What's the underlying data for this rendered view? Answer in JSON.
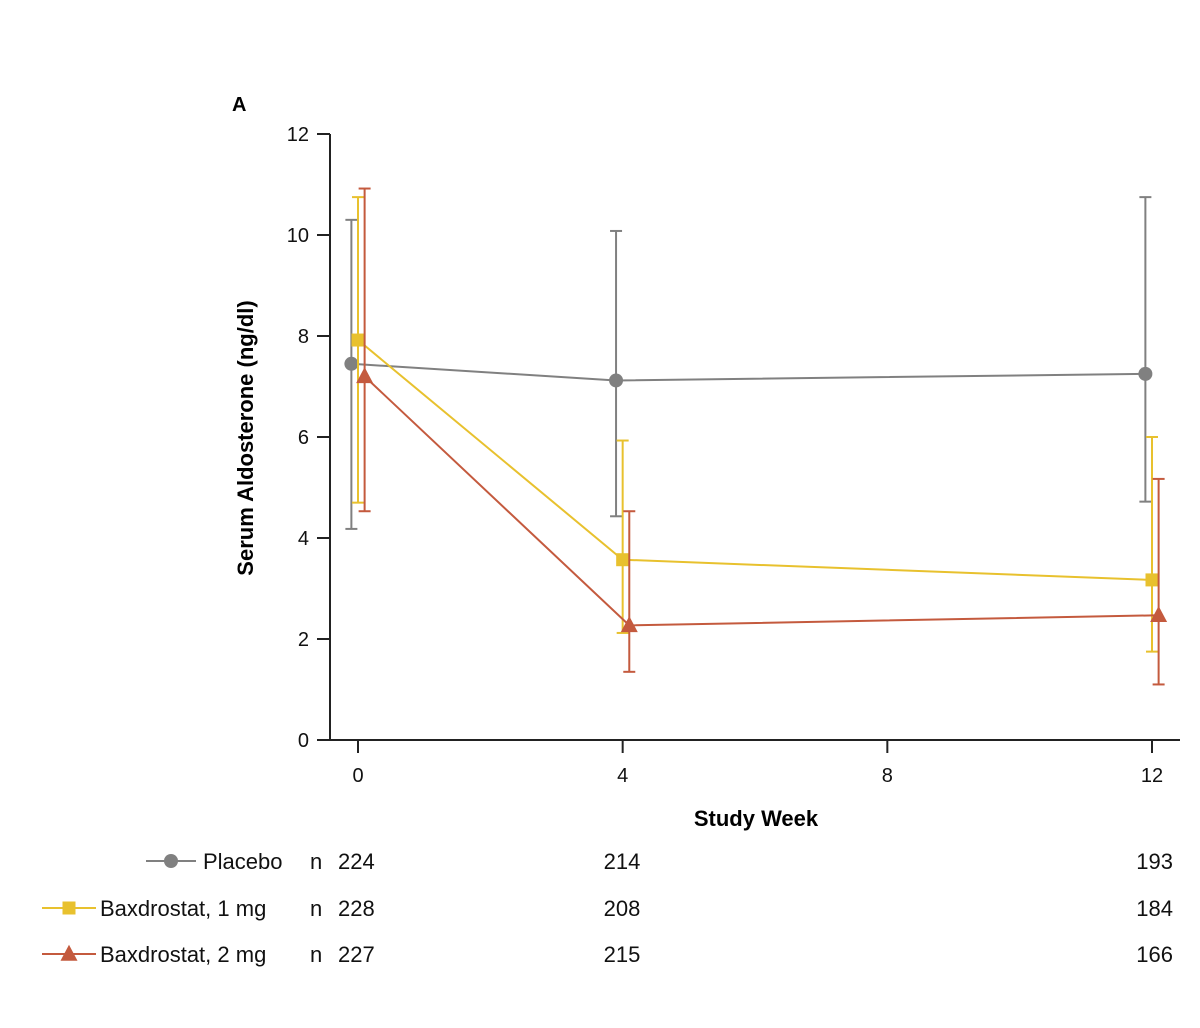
{
  "chart_data": {
    "type": "line",
    "panel_label": "A",
    "title": "",
    "xlabel": "Study Week",
    "ylabel": "Serum Aldosterone (ng/dl)",
    "xlim": [
      -0.4,
      12.4
    ],
    "ylim": [
      0,
      12
    ],
    "x_ticks": [
      "0",
      "4",
      "8",
      "12"
    ],
    "x_tick_values": [
      0,
      4,
      8,
      12
    ],
    "y_ticks": [
      "0",
      "2",
      "4",
      "6",
      "8",
      "10",
      "12"
    ],
    "y_tick_values": [
      0,
      2,
      4,
      6,
      8,
      10,
      12
    ],
    "grid": false,
    "series": [
      {
        "name": "Placebo",
        "color": "#808080",
        "marker": "circle",
        "x": [
          -0.1,
          3.9,
          11.9
        ],
        "values": [
          7.45,
          7.12,
          7.25
        ],
        "err_low": [
          4.18,
          4.43,
          4.72
        ],
        "err_high": [
          10.3,
          10.08,
          10.75
        ],
        "n_counts": [
          "224",
          "214",
          "193"
        ]
      },
      {
        "name": "Baxdrostat, 1 mg",
        "color": "#e8c12e",
        "marker": "square",
        "x": [
          0.0,
          4.0,
          12.0
        ],
        "values": [
          7.92,
          3.57,
          3.17
        ],
        "err_low": [
          4.7,
          2.12,
          1.75
        ],
        "err_high": [
          10.75,
          5.93,
          6.0
        ],
        "n_counts": [
          "228",
          "208",
          "184"
        ]
      },
      {
        "name": "Baxdrostat, 2 mg",
        "color": "#c45a3e",
        "marker": "triangle",
        "x": [
          0.1,
          4.1,
          12.1
        ],
        "values": [
          7.2,
          2.27,
          2.47
        ],
        "err_low": [
          4.53,
          1.35,
          1.1
        ],
        "err_high": [
          10.92,
          4.53,
          5.17
        ],
        "n_counts": [
          "227",
          "215",
          "166"
        ]
      }
    ]
  },
  "n_label": "n"
}
